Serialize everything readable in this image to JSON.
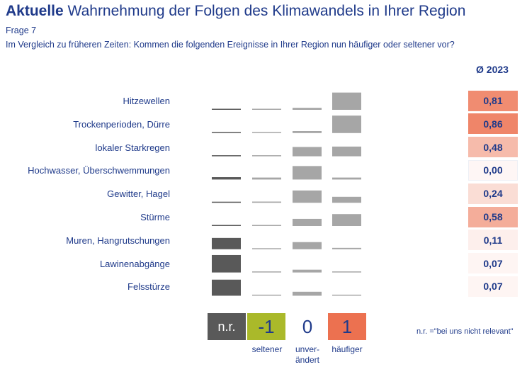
{
  "header": {
    "title_bold": "Aktuelle",
    "title_rest": " Wahrnehmung der Folgen des Klimawandels in Ihrer Region",
    "subtitle": "Frage 7",
    "question": "Im Vergleich zu früheren Zeiten: Kommen die folgenden Ereignisse in Ihrer Region nun häufiger oder seltener vor?"
  },
  "avg_header": "Ø 2023",
  "legend": {
    "nr": "n.r.",
    "minus1": "-1",
    "zero": "0",
    "one": "1",
    "cap_minus1": "seltener",
    "cap_zero_1": "unver-",
    "cap_zero_2": "ändert",
    "cap_one": "häufiger",
    "note": "n.r. =\"bei uns nicht relevant\""
  },
  "colors": {
    "title": "#1f3a8a",
    "nr_bar": "#595959",
    "grey_bar": "#a6a6a6",
    "legend_nr": "#595959",
    "legend_minus1": "#aab92a",
    "legend_one": "#ec7150",
    "avg_max": "#ec7150"
  },
  "chart_data": {
    "type": "bar",
    "title": "",
    "categories": [
      "n.r.",
      "-1",
      "0",
      "1"
    ],
    "rows": [
      {
        "label": "Hitzewellen",
        "values": [
          0.02,
          0.01,
          0.1,
          0.87
        ],
        "avg": "0,81",
        "avg_value": 0.81
      },
      {
        "label": "Trockenperioden, Dürre",
        "values": [
          0.02,
          0.0,
          0.1,
          0.88
        ],
        "avg": "0,86",
        "avg_value": 0.86
      },
      {
        "label": "lokaler Starkregen",
        "values": [
          0.02,
          0.04,
          0.47,
          0.49
        ],
        "avg": "0,48",
        "avg_value": 0.48
      },
      {
        "label": "Hochwasser, Überschwemmungen",
        "values": [
          0.12,
          0.1,
          0.68,
          0.1
        ],
        "avg": "0,00",
        "avg_value": 0.0
      },
      {
        "label": "Gewitter, Hagel",
        "values": [
          0.02,
          0.06,
          0.62,
          0.3
        ],
        "avg": "0,24",
        "avg_value": 0.24
      },
      {
        "label": "Stürme",
        "values": [
          0.02,
          0.02,
          0.36,
          0.6
        ],
        "avg": "0,58",
        "avg_value": 0.58
      },
      {
        "label": "Muren, Hangrutschungen",
        "values": [
          0.57,
          0.04,
          0.36,
          0.07
        ],
        "avg": "0,11",
        "avg_value": 0.11
      },
      {
        "label": "Lawinenabgänge",
        "values": [
          0.88,
          0.01,
          0.14,
          0.02
        ],
        "avg": "0,07",
        "avg_value": 0.07
      },
      {
        "label": "Felsstürze",
        "values": [
          0.81,
          0.02,
          0.2,
          0.04
        ],
        "avg": "0,07",
        "avg_value": 0.07
      }
    ],
    "legend_placement": "bottom"
  }
}
